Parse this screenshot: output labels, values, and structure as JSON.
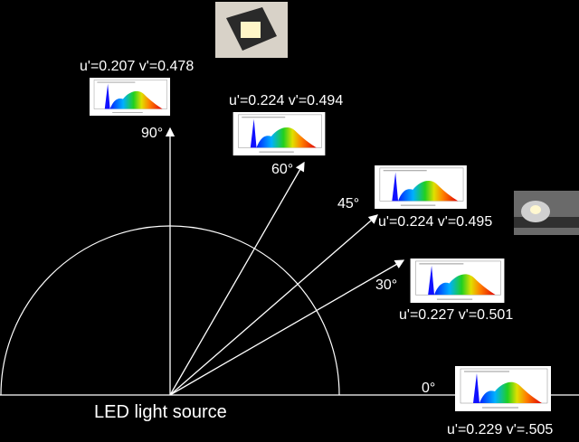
{
  "source_label": "LED light source",
  "angles": [
    {
      "angle": "90°",
      "coords": "u'=0.207 v'=0.478"
    },
    {
      "angle": "60°",
      "coords": "u'=0.224 v'=0.494"
    },
    {
      "angle": "45°",
      "coords": "u'=0.224 v'=0.495"
    },
    {
      "angle": "30°",
      "coords": "u'=0.227 v'=0.501"
    },
    {
      "angle": "0°",
      "coords": "u'=0.229 v'=.505"
    }
  ]
}
